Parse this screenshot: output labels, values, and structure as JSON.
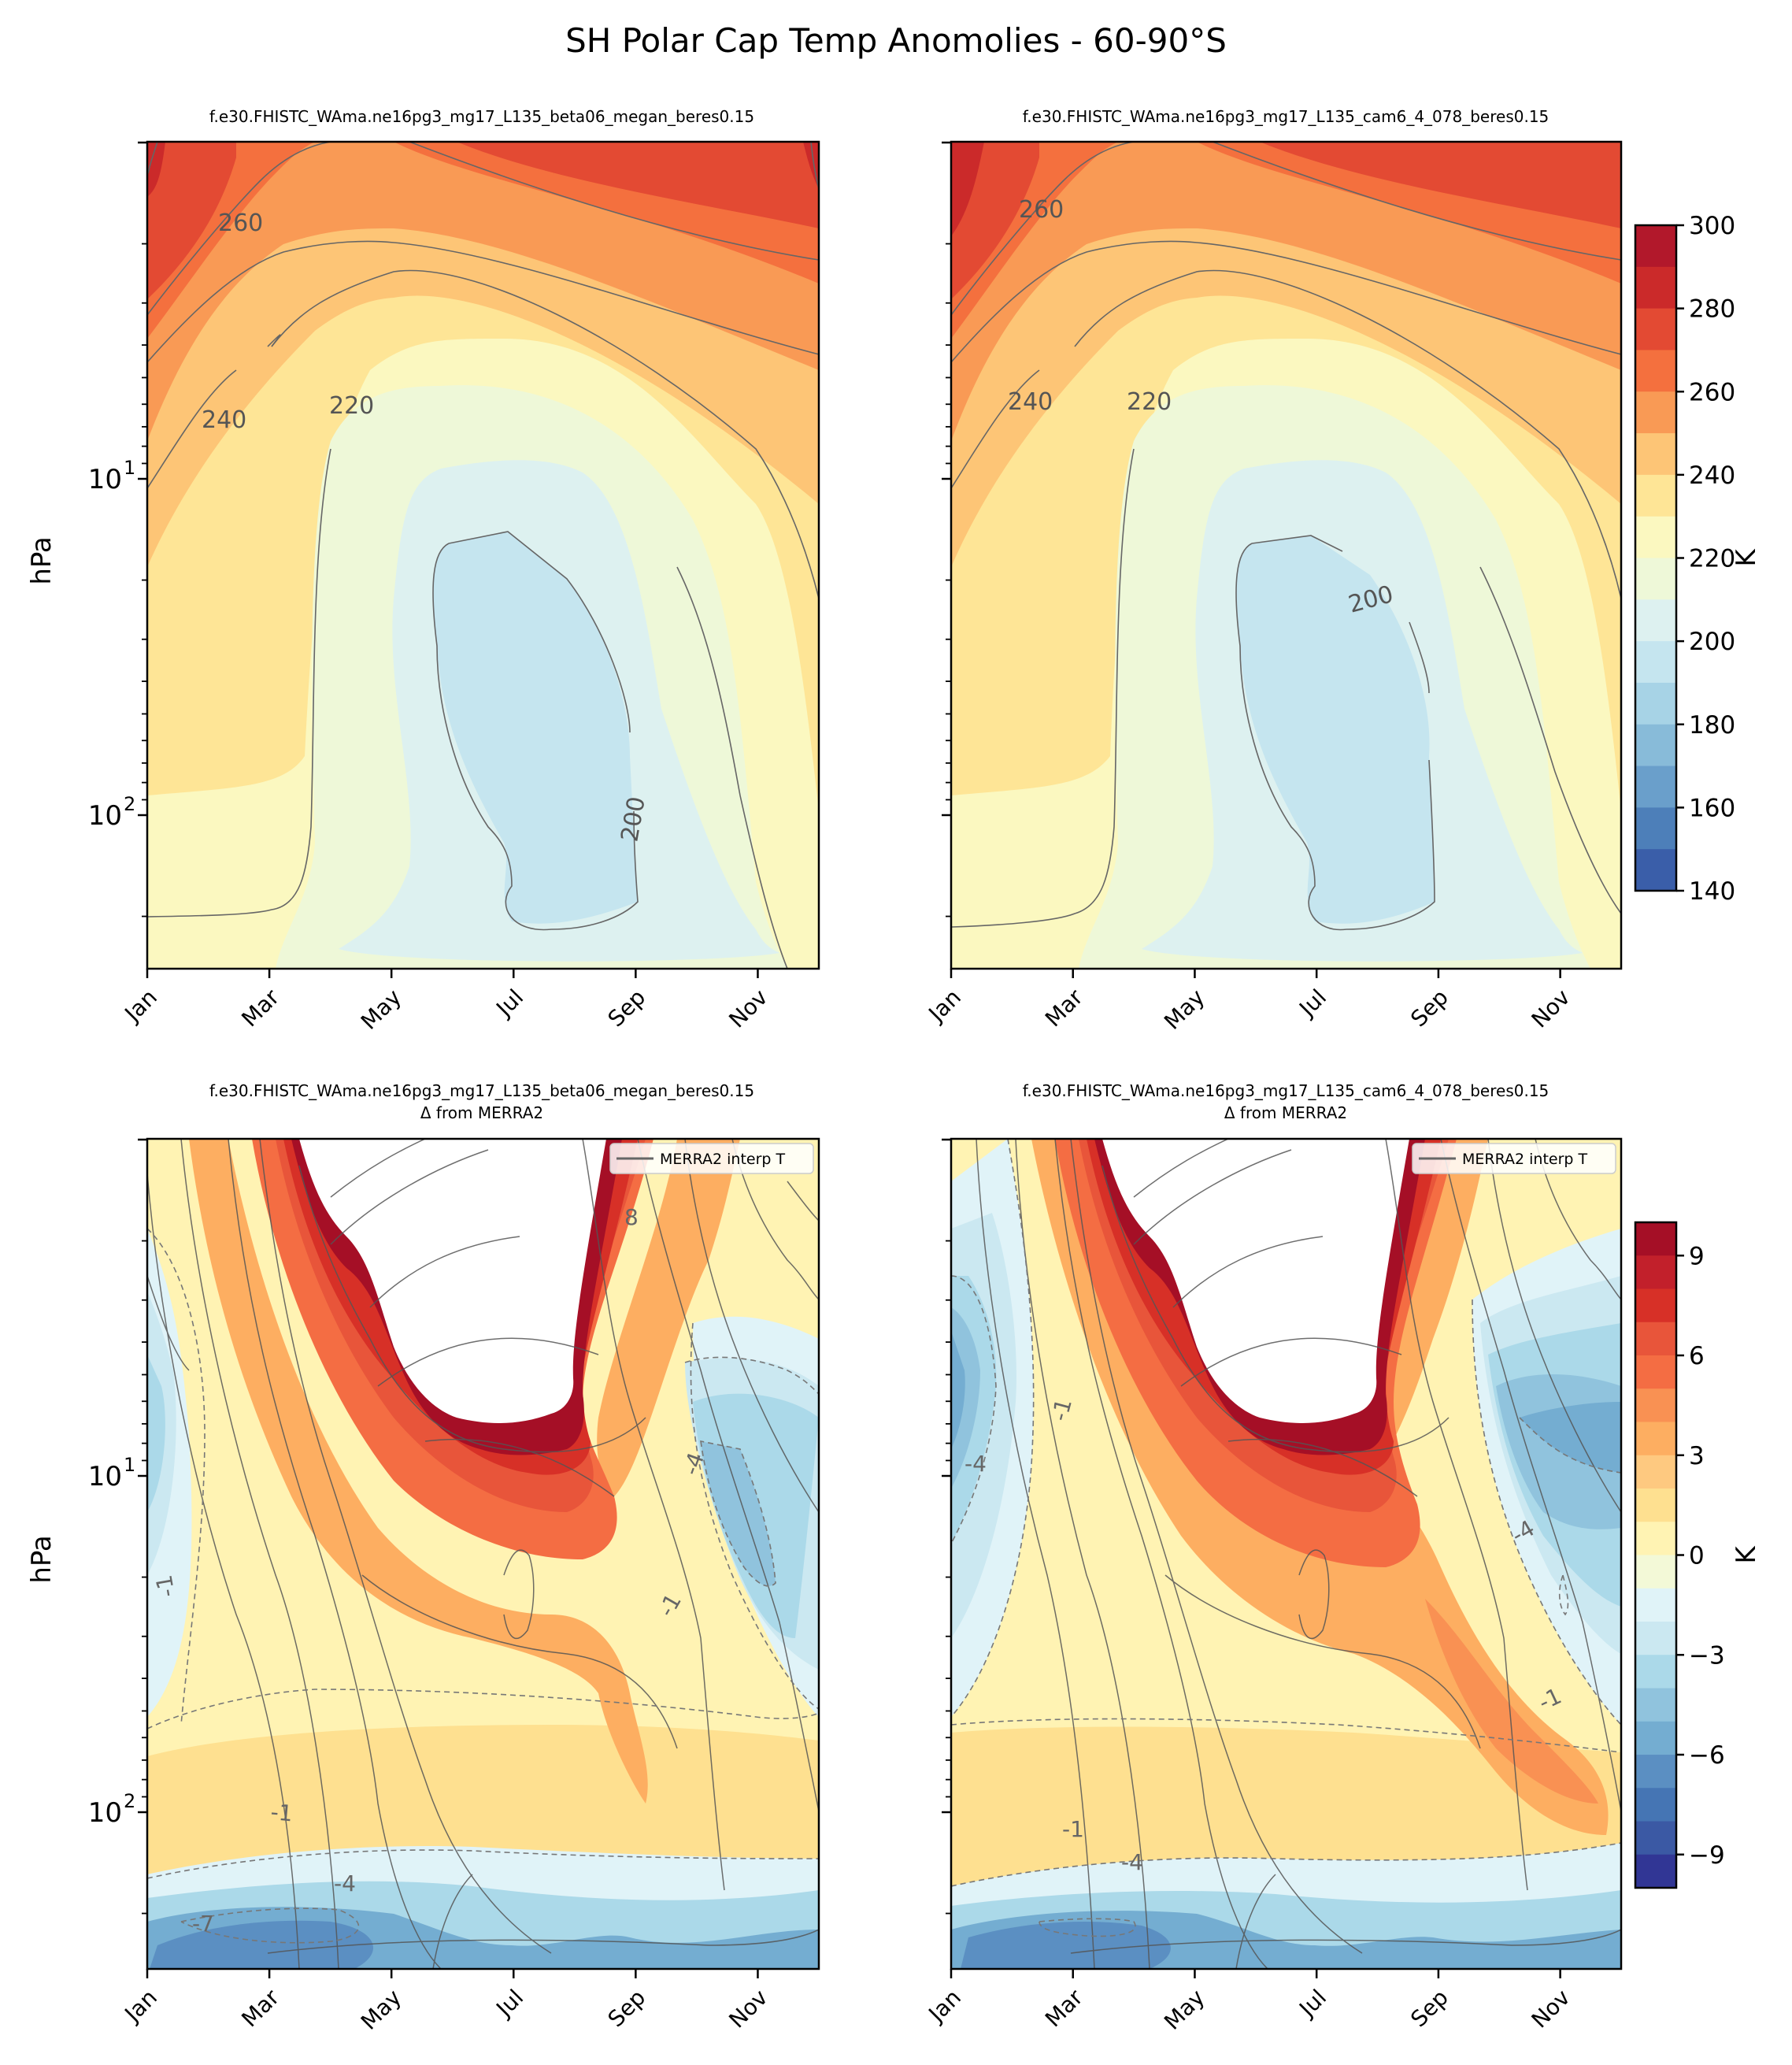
{
  "figure": {
    "title": "SH Polar Cap Temp Anomolies - 60-90°S"
  },
  "chart_data": [
    {
      "type": "heatmap",
      "position": "top-left",
      "title": "f.e30.FHISTC_WAma.ne16pg3_mg17_L135_beta06_megan_beres0.15",
      "subtitle": "",
      "ylabel": "hPa",
      "y_scale": "log-inverted",
      "y_ticks": [
        "10",
        "10"
      ],
      "y_tick_exponents": [
        "1",
        "2"
      ],
      "x_ticks": [
        "Jan",
        "Mar",
        "May",
        "Jul",
        "Sep",
        "Nov"
      ],
      "contour_labels": [
        "260",
        "240",
        "220",
        "200"
      ],
      "legend": ""
    },
    {
      "type": "heatmap",
      "position": "top-right",
      "title": "f.e30.FHISTC_WAma.ne16pg3_mg17_L135_cam6_4_078_beres0.15",
      "subtitle": "",
      "ylabel": "",
      "y_scale": "log-inverted",
      "x_ticks": [
        "Jan",
        "Mar",
        "May",
        "Jul",
        "Sep",
        "Nov"
      ],
      "contour_labels": [
        "260",
        "240",
        "220",
        "200"
      ],
      "legend": "",
      "colorbar": {
        "label": "K",
        "ticks": [
          "300",
          "280",
          "260",
          "240",
          "220",
          "200",
          "180",
          "160",
          "140"
        ],
        "range": [
          140,
          300
        ],
        "colors": [
          "#b2182b",
          "#cb2a2a",
          "#e34a33",
          "#f4703e",
          "#f99a55",
          "#fdc576",
          "#fee596",
          "#fbf8c0",
          "#eef8d8",
          "#ddf1f0",
          "#c5e5ef",
          "#a7d3e6",
          "#88bbd9",
          "#6a9fcb",
          "#4d7fb9",
          "#3a5ea9"
        ]
      }
    },
    {
      "type": "heatmap",
      "position": "bottom-left",
      "title": "f.e30.FHISTC_WAma.ne16pg3_mg17_L135_beta06_megan_beres0.15",
      "subtitle": "Δ from MERRA2",
      "ylabel": "hPa",
      "y_scale": "log-inverted",
      "y_ticks": [
        "10",
        "10"
      ],
      "y_tick_exponents": [
        "1",
        "2"
      ],
      "x_ticks": [
        "Jan",
        "Mar",
        "May",
        "Jul",
        "Sep",
        "Nov"
      ],
      "contour_labels": [
        "8",
        "-4",
        "-1",
        "-1",
        "-1",
        "-4",
        "-7"
      ],
      "legend": "MERRA2 interp T"
    },
    {
      "type": "heatmap",
      "position": "bottom-right",
      "title": "f.e30.FHISTC_WAma.ne16pg3_mg17_L135_cam6_4_078_beres0.15",
      "subtitle": "Δ from MERRA2",
      "ylabel": "",
      "y_scale": "log-inverted",
      "x_ticks": [
        "Jan",
        "Mar",
        "May",
        "Jul",
        "Sep",
        "Nov"
      ],
      "contour_labels": [
        "-1",
        "-4",
        "-4",
        "-1",
        "-1",
        "-4"
      ],
      "legend": "MERRA2 interp T",
      "colorbar": {
        "label": "K",
        "ticks": [
          "9",
          "6",
          "3",
          "0",
          "−3",
          "−6",
          "−9"
        ],
        "range": [
          -10,
          10
        ],
        "colors": [
          "#a50f26",
          "#c2202b",
          "#d73027",
          "#e8553a",
          "#f46d43",
          "#f99153",
          "#fdae61",
          "#fec980",
          "#fee090",
          "#fff3b3",
          "#f3f9d7",
          "#e0f3f8",
          "#cbe8f1",
          "#abd9e9",
          "#90c3dd",
          "#74add1",
          "#5b8fc2",
          "#4575b4",
          "#3b59a4",
          "#313695"
        ]
      }
    }
  ]
}
